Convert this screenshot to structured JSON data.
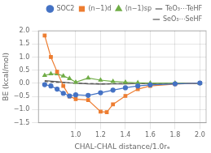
{
  "chart_data": {
    "type": "line",
    "xlabel": "CHAL-CHAL distance/1.0rₑ",
    "ylabel": "BE (kcal/mol)",
    "xlim": [
      0.7,
      2.05
    ],
    "ylim": [
      -1.5,
      2.0
    ],
    "xticks": [
      {
        "value": 1.0,
        "label": "1.0"
      },
      {
        "value": 1.2,
        "label": "1.2"
      },
      {
        "value": 1.4,
        "label": "1.4"
      },
      {
        "value": 1.6,
        "label": "1.6"
      },
      {
        "value": 1.8,
        "label": "1.8"
      },
      {
        "value": 2.0,
        "label": "2.0"
      }
    ],
    "yticks": [
      {
        "value": -1.5,
        "label": "−1.5"
      },
      {
        "value": -1.0,
        "label": "−1.0"
      },
      {
        "value": -0.5,
        "label": "−0.5"
      },
      {
        "value": 0.0,
        "label": "0.0"
      },
      0.5,
      {
        "value": 1.0,
        "label": "1.0"
      },
      1.5,
      {
        "value": 2.0,
        "label": "2.0"
      }
    ],
    "grid": true,
    "legend": "upper right",
    "series": [
      {
        "name": "SOC2",
        "color": "#4472C4",
        "marker": "circle",
        "line_style": "solid",
        "x": [
          0.75,
          0.8,
          0.85,
          0.9,
          0.95,
          1.0,
          1.1,
          1.2,
          1.3,
          1.4,
          1.5,
          1.6,
          1.8,
          2.0
        ],
        "values": [
          -0.05,
          -0.1,
          -0.22,
          -0.38,
          -0.48,
          -0.44,
          -0.46,
          -0.36,
          -0.26,
          -0.17,
          -0.1,
          -0.06,
          -0.02,
          0.01
        ]
      },
      {
        "name": "(n−1)d",
        "color": "#ED7D31",
        "marker": "square",
        "line_style": "solid",
        "x": [
          0.75,
          0.8,
          0.85,
          0.9,
          0.95,
          1.0,
          1.1,
          1.2,
          1.25,
          1.3,
          1.4,
          1.5,
          1.6,
          1.8,
          2.0
        ],
        "values": [
          1.82,
          1.0,
          0.44,
          -0.1,
          -0.5,
          -0.6,
          -0.64,
          -1.08,
          -1.1,
          -0.8,
          -0.48,
          -0.22,
          -0.1,
          -0.03,
          0.01
        ]
      },
      {
        "name": "(n−1)sp",
        "color": "#70AD47",
        "marker": "triangle",
        "line_style": "solid",
        "x": [
          0.75,
          0.8,
          0.85,
          0.9,
          0.95,
          1.0,
          1.1,
          1.2,
          1.3,
          1.4,
          1.5,
          1.6,
          1.8,
          2.0
        ],
        "values": [
          0.3,
          0.36,
          0.36,
          0.28,
          0.18,
          0.04,
          0.2,
          0.12,
          0.07,
          0.04,
          0.02,
          0.01,
          0.005,
          0.0
        ]
      },
      {
        "name": "TeO₃⋯TeHF",
        "color": "#555555",
        "line_style": "solid",
        "x": [
          0.75,
          0.85,
          0.9,
          0.95,
          1.0,
          1.1,
          1.2,
          1.3,
          1.4,
          1.5,
          1.6,
          1.8,
          2.0
        ],
        "values": [
          0.1,
          0.06,
          0.04,
          0.02,
          0.01,
          -0.02,
          -0.03,
          -0.025,
          -0.02,
          -0.01,
          -0.005,
          0.0,
          0.0
        ]
      },
      {
        "name": "SeO₃⋯SeHF",
        "color": "#555555",
        "line_style": "dashed",
        "x": [
          0.75,
          0.85,
          0.9,
          0.95,
          1.0,
          1.1,
          1.2,
          1.3,
          1.4,
          1.5,
          1.6,
          1.8,
          2.0
        ],
        "values": [
          0.07,
          0.04,
          0.03,
          0.015,
          0.005,
          -0.01,
          -0.02,
          -0.018,
          -0.015,
          -0.008,
          -0.004,
          0.0,
          0.0
        ]
      }
    ]
  }
}
